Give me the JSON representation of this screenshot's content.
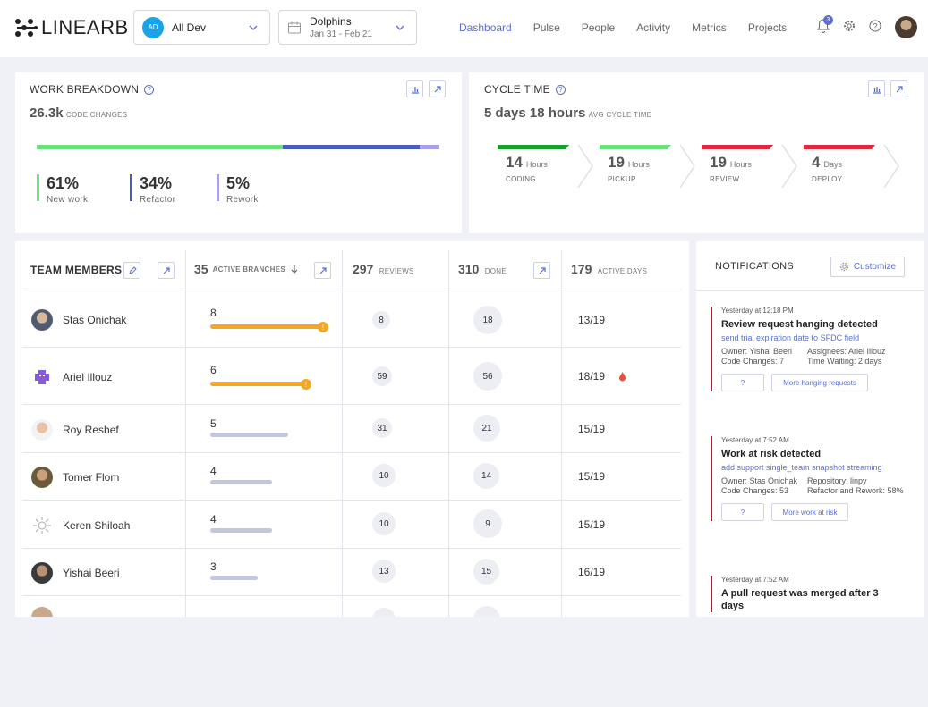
{
  "header": {
    "logo_text": "LINEARB",
    "team_selector": {
      "initials": "AD",
      "label": "All Dev"
    },
    "date_selector": {
      "title": "Dolphins",
      "range": "Jan 31 - Feb 21"
    },
    "nav": [
      "Dashboard",
      "Pulse",
      "People",
      "Activity",
      "Metrics",
      "Projects"
    ],
    "active_nav": "Dashboard",
    "notification_count": "3"
  },
  "work_breakdown": {
    "title": "WORK BREAKDOWN",
    "total": "26.3k",
    "total_label": "CODE CHANGES",
    "segments": [
      {
        "pct_value": 61,
        "pct": "61%",
        "label": "New work",
        "color": "#6ee07c"
      },
      {
        "pct_value": 34,
        "pct": "34%",
        "label": "Refactor",
        "color": "#4a5bb8"
      },
      {
        "pct_value": 5,
        "pct": "5%",
        "label": "Rework",
        "color": "#a9a0e6"
      }
    ]
  },
  "cycle_time": {
    "title": "CYCLE TIME",
    "total": "5 days 18 hours",
    "total_label": "AVG CYCLE TIME",
    "steps": [
      {
        "value": "14",
        "unit": "Hours",
        "label": "CODING",
        "color": "#1a9e2c"
      },
      {
        "value": "19",
        "unit": "Hours",
        "label": "PICKUP",
        "color": "#6ee07c"
      },
      {
        "value": "19",
        "unit": "Hours",
        "label": "REVIEW",
        "color": "#e0283e"
      },
      {
        "value": "4",
        "unit": "Days",
        "label": "DEPLOY",
        "color": "#e0283e"
      }
    ]
  },
  "team": {
    "title": "TEAM MEMBERS",
    "branches_total": "35",
    "branches_label": "ACTIVE BRANCHES",
    "reviews_total": "297",
    "reviews_label": "REVIEWS",
    "done_total": "310",
    "done_label": "DONE",
    "days_total": "179",
    "days_label": "ACTIVE DAYS",
    "rows": [
      {
        "name": "Stas Onichak",
        "branches": "8",
        "reviews": "8",
        "done": "18",
        "days": "13/19"
      },
      {
        "name": "Ariel Illouz",
        "branches": "6",
        "reviews": "59",
        "done": "56",
        "days": "18/19"
      },
      {
        "name": "Roy Reshef",
        "branches": "5",
        "reviews": "31",
        "done": "21",
        "days": "15/19"
      },
      {
        "name": "Tomer Flom",
        "branches": "4",
        "reviews": "10",
        "done": "14",
        "days": "15/19"
      },
      {
        "name": "Keren Shiloah",
        "branches": "4",
        "reviews": "10",
        "done": "9",
        "days": "15/19"
      },
      {
        "name": "Yishai Beeri",
        "branches": "3",
        "reviews": "13",
        "done": "15",
        "days": "16/19"
      }
    ]
  },
  "notifications": {
    "title": "NOTIFICATIONS",
    "customize_label": "Customize",
    "items": [
      {
        "time": "Yesterday at 12:18 PM",
        "title": "Review request hanging detected",
        "link": "send trial expiration date to SFDC field",
        "left": [
          "Owner: Yishai Beeri",
          "Code Changes: 7"
        ],
        "right": [
          "Assignees: Ariel Illouz",
          "Time Waiting: 2 days"
        ],
        "btn1": "?",
        "btn2": "More hanging requests"
      },
      {
        "time": "Yesterday at 7:52 AM",
        "title": "Work at risk detected",
        "link": "add support single_team snapshot streaming",
        "left": [
          "Owner: Stas Onichak",
          "Code Changes: 53"
        ],
        "right": [
          "Repository: linpy",
          "Refactor and Rework: 58%"
        ],
        "btn1": "?",
        "btn2": "More work at risk"
      },
      {
        "time": "Yesterday at 7:52 AM",
        "title": "A pull request was merged after 3 days"
      }
    ]
  }
}
